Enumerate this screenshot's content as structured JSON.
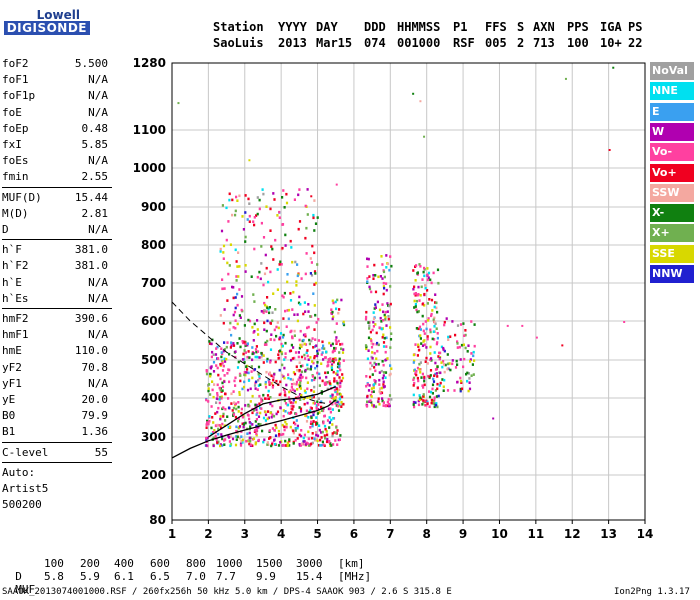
{
  "logo": {
    "line1": "Lowell",
    "line2": "DIGISONDE"
  },
  "header": {
    "row1": [
      "Station",
      "YYYY",
      "DAY",
      "DDD",
      "HHMMSS",
      "P1",
      "FFS",
      "S",
      "AXN",
      "PPS",
      "IGA",
      "PS"
    ],
    "row2": [
      "SaoLuis",
      "2013",
      "Mar15",
      "074",
      "001000",
      "RSF",
      "005",
      "2",
      "713",
      "100",
      "10+",
      "22"
    ]
  },
  "params": {
    "group1": [
      {
        "k": "foF2",
        "v": "5.500"
      },
      {
        "k": "foF1",
        "v": "N/A"
      },
      {
        "k": "foF1p",
        "v": "N/A"
      },
      {
        "k": "foE",
        "v": "N/A"
      },
      {
        "k": "foEp",
        "v": "0.48"
      },
      {
        "k": "fxI",
        "v": "5.85"
      },
      {
        "k": "foEs",
        "v": "N/A"
      },
      {
        "k": "fmin",
        "v": "2.55"
      }
    ],
    "group2": [
      {
        "k": "MUF(D)",
        "v": "15.44"
      },
      {
        "k": "M(D)",
        "v": "2.81"
      },
      {
        "k": "D",
        "v": "N/A"
      }
    ],
    "group3": [
      {
        "k": "h`F",
        "v": "381.0"
      },
      {
        "k": "h`F2",
        "v": "381.0"
      },
      {
        "k": "h`E",
        "v": "N/A"
      },
      {
        "k": "h`Es",
        "v": "N/A"
      }
    ],
    "group4": [
      {
        "k": "hmF2",
        "v": "390.6"
      },
      {
        "k": "hmF1",
        "v": "N/A"
      },
      {
        "k": "hmE",
        "v": "110.0"
      },
      {
        "k": "yF2",
        "v": "70.8"
      },
      {
        "k": "yF1",
        "v": "N/A"
      },
      {
        "k": "yE",
        "v": "20.0"
      },
      {
        "k": "B0",
        "v": "79.9"
      },
      {
        "k": "B1",
        "v": "1.36"
      }
    ],
    "clevel": {
      "k": "C-level",
      "v": "55"
    },
    "auto": [
      "Auto:",
      "Artist5",
      "500200"
    ]
  },
  "legend": [
    {
      "label": "NoVal",
      "color": "#a0a0a0"
    },
    {
      "label": "NNE",
      "color": "#00e0f0"
    },
    {
      "label": "E",
      "color": "#3aa0f0"
    },
    {
      "label": "W",
      "color": "#b000b0"
    },
    {
      "label": "Vo-",
      "color": "#ff40a0"
    },
    {
      "label": "Vo+",
      "color": "#f00020"
    },
    {
      "label": "SSW",
      "color": "#f4a8a0"
    },
    {
      "label": "X-",
      "color": "#108010"
    },
    {
      "label": "X+",
      "color": "#70b050"
    },
    {
      "label": "SSE",
      "color": "#d8d800"
    },
    {
      "label": "NNW",
      "color": "#2020d0"
    }
  ],
  "chart_data": {
    "type": "scatter",
    "x_ticks": [
      1,
      2,
      3,
      4,
      5,
      6,
      7,
      8,
      9,
      10,
      11,
      12,
      13,
      14
    ],
    "y_ticks": [
      80,
      200,
      300,
      400,
      500,
      600,
      700,
      800,
      900,
      1000,
      1100,
      1280
    ],
    "xlim": [
      1,
      14
    ],
    "ylim": [
      80,
      1280
    ],
    "grid": true,
    "legend_position": "right",
    "profile_curve": [
      [
        1,
        245
      ],
      [
        1.5,
        270
      ],
      [
        2,
        290
      ],
      [
        2.5,
        305
      ],
      [
        3,
        318
      ],
      [
        3.5,
        330
      ],
      [
        4,
        342
      ],
      [
        4.5,
        355
      ],
      [
        5,
        368
      ],
      [
        5.3,
        380
      ],
      [
        5.5,
        395
      ]
    ],
    "dashed_curve": [
      [
        1,
        650
      ],
      [
        1.5,
        600
      ],
      [
        2,
        560
      ],
      [
        2.5,
        520
      ],
      [
        3,
        490
      ],
      [
        3.5,
        460
      ],
      [
        4,
        430
      ],
      [
        4.5,
        405
      ],
      [
        5,
        390
      ],
      [
        5.3,
        385
      ]
    ],
    "trace_curve": [
      [
        2,
        300
      ],
      [
        2.5,
        330
      ],
      [
        3,
        360
      ],
      [
        3.5,
        385
      ],
      [
        4,
        395
      ],
      [
        4.5,
        400
      ],
      [
        5,
        410
      ],
      [
        5.5,
        430
      ]
    ],
    "clusters": [
      {
        "x": [
          1.9,
          5.6
        ],
        "y": [
          280,
          560
        ],
        "density": 900
      },
      {
        "x": [
          2.3,
          5.0
        ],
        "y": [
          560,
          950
        ],
        "density": 260
      },
      {
        "x": [
          5.3,
          5.7
        ],
        "y": [
          380,
          660
        ],
        "density": 80
      },
      {
        "x": [
          6.3,
          7.0
        ],
        "y": [
          380,
          780
        ],
        "density": 200
      },
      {
        "x": [
          7.6,
          8.3
        ],
        "y": [
          380,
          760
        ],
        "density": 220
      },
      {
        "x": [
          8.3,
          9.3
        ],
        "y": [
          420,
          620
        ],
        "density": 90
      }
    ],
    "outliers": [
      [
        1.15,
        1175
      ],
      [
        3.1,
        1023
      ],
      [
        4.8,
        930
      ],
      [
        5.5,
        960
      ],
      [
        7.6,
        1200
      ],
      [
        7.8,
        1180
      ],
      [
        7.9,
        1085
      ],
      [
        10.2,
        590
      ],
      [
        10.6,
        590
      ],
      [
        11.0,
        560
      ],
      [
        11.8,
        1240
      ],
      [
        13.1,
        1270
      ],
      [
        13.0,
        1050
      ],
      [
        13.4,
        600
      ],
      [
        9.8,
        350
      ],
      [
        11.7,
        540
      ]
    ]
  },
  "footer": {
    "d_label": "D",
    "d_values": [
      "100",
      "200",
      "400",
      "600",
      "800",
      "1000",
      "1500",
      "3000",
      "[km]"
    ],
    "muf_label": "MUF",
    "muf_values": [
      "5.8",
      "5.9",
      "6.1",
      "6.5",
      "7.0",
      "7.7",
      "9.9",
      "15.4",
      "[MHz]"
    ],
    "file_info": "SAAOK_2013074001000.RSF / 260fx256h 50 kHz 5.0 km / DPS-4 SAAOK 903 / 2.6 S 315.8 E",
    "version": "Ion2Png 1.3.17"
  }
}
